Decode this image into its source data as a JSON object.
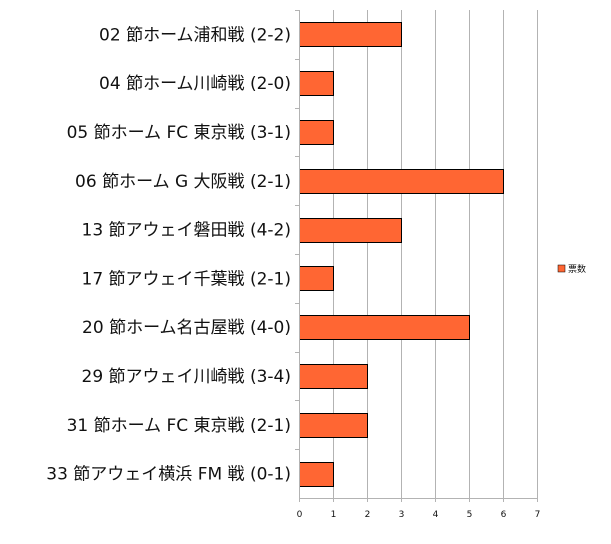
{
  "chart_data": {
    "type": "bar",
    "orientation": "horizontal",
    "categories": [
      "02 節ホーム浦和戦 (2-2)",
      "04 節ホーム川崎戦 (2-0)",
      "05 節ホーム FC 東京戦 (3-1)",
      "06 節ホーム G 大阪戦 (2-1)",
      "13 節アウェイ磐田戦 (4-2)",
      "17 節アウェイ千葉戦 (2-1)",
      "20 節ホーム名古屋戦 (4-0)",
      "29 節アウェイ川崎戦 (3-4)",
      "31 節ホーム FC 東京戦 (2-1)",
      "33 節アウェイ横浜 FM 戦 (0-1)"
    ],
    "series": [
      {
        "name": "票数",
        "values": [
          3,
          1,
          1,
          6,
          3,
          1,
          5,
          2,
          2,
          1
        ],
        "color": "#ff6633"
      }
    ],
    "xlim": [
      0,
      7
    ],
    "xticks": [
      "0",
      "1",
      "2",
      "3",
      "4",
      "5",
      "6",
      "7"
    ],
    "grid": true,
    "legend": "right"
  }
}
